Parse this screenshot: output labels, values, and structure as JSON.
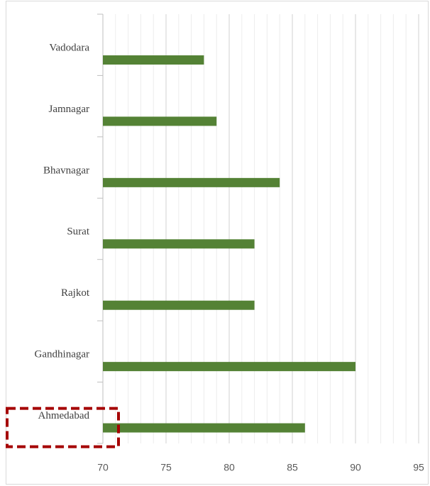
{
  "chart_data": {
    "type": "barh",
    "categories": [
      "Vadodara",
      "Jamnagar",
      "Bhavnagar",
      "Surat",
      "Rajkot",
      "Gandhinagar",
      "Ahmedabad"
    ],
    "values": [
      78,
      79,
      84,
      82,
      82,
      90,
      86
    ],
    "color": "#548235",
    "xlim": [
      70,
      95
    ],
    "xticks": [
      70,
      75,
      80,
      85,
      90,
      95
    ],
    "grid": true,
    "minor_grid_step": 1,
    "highlight": "Ahmedabad"
  }
}
